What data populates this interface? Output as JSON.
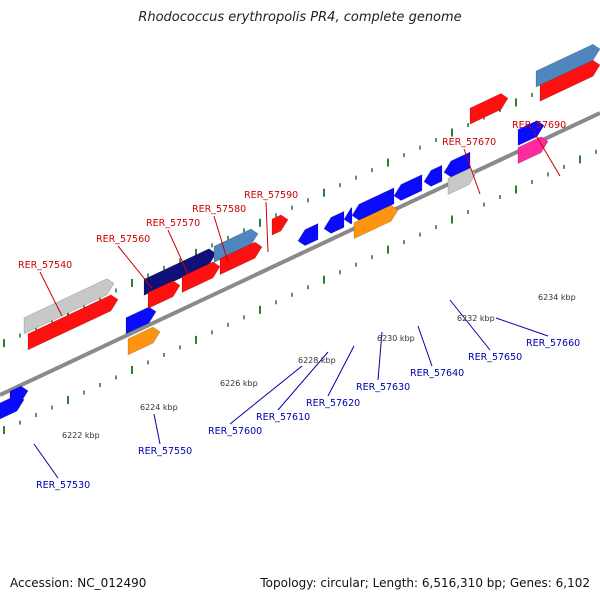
{
  "title": "Rhodococcus erythropolis PR4, complete genome",
  "footer": {
    "accession": "Accession: NC_012490",
    "topology": "Topology: circular; Length: 6,516,310 bp; Genes: 6,102"
  },
  "colors": {
    "backbone": "#8a8a8a",
    "tick": "#2e7d32",
    "red_gene": "#ff1010",
    "blue_gene": "#0a0aff",
    "navy_gene": "#10107a",
    "steel_gene": "#4f86c0",
    "gray_gene": "#c8c8c8",
    "orange_gene": "#ff9410",
    "pink_gene": "#ff2aa0",
    "red_label": "#cc0000",
    "blue_label": "#0000aa"
  },
  "scale_labels": [
    "6222 kbp",
    "6224 kbp",
    "6226 kbp",
    "6228 kbp",
    "6230 kbp",
    "6232 kbp",
    "6234 kbp"
  ],
  "genes": [
    {
      "label": "RER_57530"
    },
    {
      "label": "RER_57540"
    },
    {
      "label": "RER_57550"
    },
    {
      "label": "RER_57560"
    },
    {
      "label": "RER_57570"
    },
    {
      "label": "RER_57580"
    },
    {
      "label": "RER_57590"
    },
    {
      "label": "RER_57600"
    },
    {
      "label": "RER_57610"
    },
    {
      "label": "RER_57620"
    },
    {
      "label": "RER_57630"
    },
    {
      "label": "RER_57640"
    },
    {
      "label": "RER_57650"
    },
    {
      "label": "RER_57660"
    },
    {
      "label": "RER_57670"
    },
    {
      "label": "RER_57690"
    }
  ]
}
